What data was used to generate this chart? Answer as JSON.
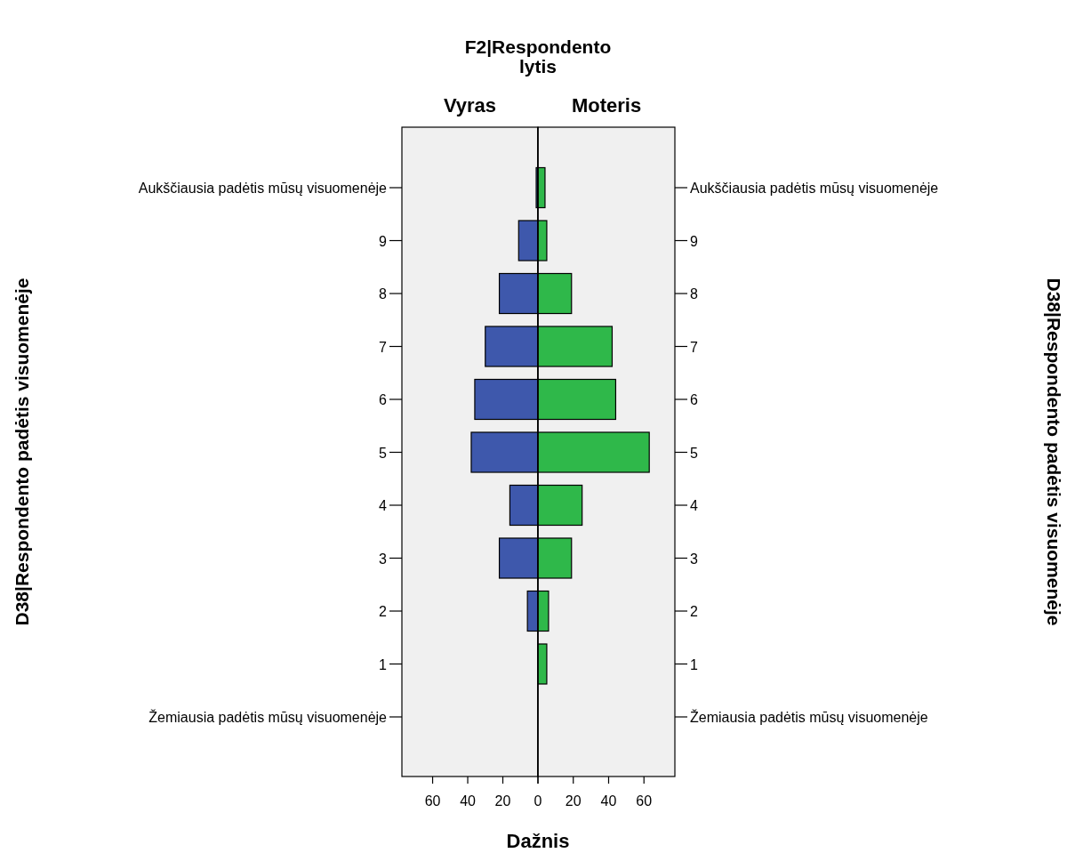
{
  "chart_data": [
    {
      "type": "bar",
      "orientation": "horizontal",
      "title": "Vyras",
      "annotations": [
        "F2|Respondento lytis"
      ],
      "xlabel": "Dažnis",
      "ylabel": "D38|Respondento padėtis visuomenėje",
      "categories": [
        "Aukščiausia padėtis mūsų visuomenėje",
        "9",
        "8",
        "7",
        "6",
        "5",
        "4",
        "3",
        "2",
        "1",
        "Žemiausia padėtis mūsų visuomenėje"
      ],
      "values": [
        1,
        11,
        22,
        30,
        36,
        38,
        16,
        22,
        6,
        null,
        null
      ],
      "color": "#3e58ac",
      "xlim": [
        77.5,
        0
      ],
      "xticks": [
        60,
        40,
        20,
        0
      ]
    },
    {
      "type": "bar",
      "orientation": "horizontal",
      "title": "Moteris",
      "y2label": "D38|Respondento padėtis visuomenėje",
      "categories": [
        "Aukščiausia padėtis mūsų visuomenėje",
        "9",
        "8",
        "7",
        "6",
        "5",
        "4",
        "3",
        "2",
        "1",
        "Žemiausia padėtis mūsų visuomenėje"
      ],
      "values": [
        4,
        5,
        19,
        42,
        44,
        63,
        25,
        19,
        6,
        5,
        null
      ],
      "color": "#2fb84a",
      "xlim": [
        0,
        77.5
      ],
      "xticks": [
        {
          "value": 0,
          "label": null
        },
        20,
        40,
        60
      ]
    }
  ]
}
